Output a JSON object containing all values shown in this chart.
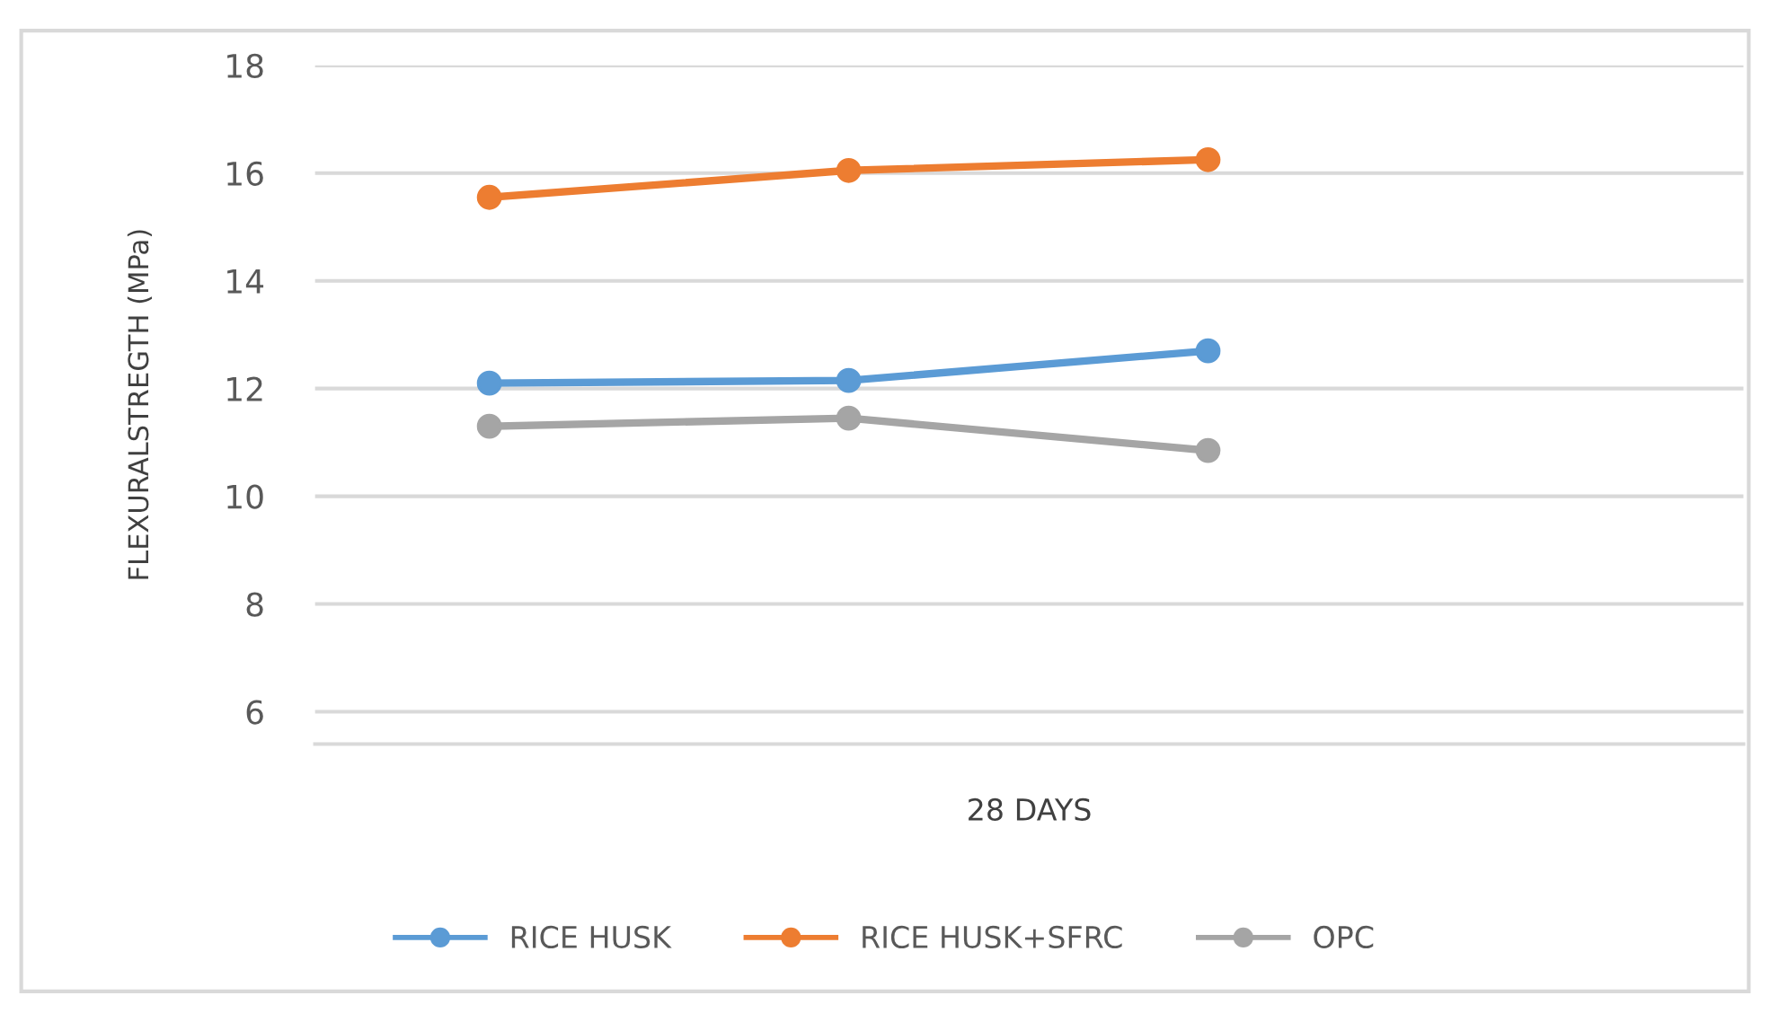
{
  "chart_data": {
    "type": "line",
    "xlabel": "28 DAYS",
    "ylabel": "FLEXURALSTREGTH (MPa)",
    "categories": [
      null,
      null,
      null
    ],
    "series": [
      {
        "name": "RICE HUSK",
        "color": "#5b9bd5",
        "values": [
          12.1,
          12.15,
          12.7
        ]
      },
      {
        "name": "RICE HUSK+SFRC",
        "color": "#ed7d31",
        "values": [
          15.55,
          16.05,
          16.25
        ]
      },
      {
        "name": "OPC",
        "color": "#a5a5a5",
        "values": [
          11.3,
          11.45,
          10.85
        ]
      }
    ],
    "ylim": [
      5.4,
      18
    ],
    "yticks": [
      6,
      8,
      10,
      12,
      14,
      16,
      18
    ],
    "grid": "y",
    "legend": "bottom",
    "marker": "circle",
    "line_style": "solid"
  }
}
